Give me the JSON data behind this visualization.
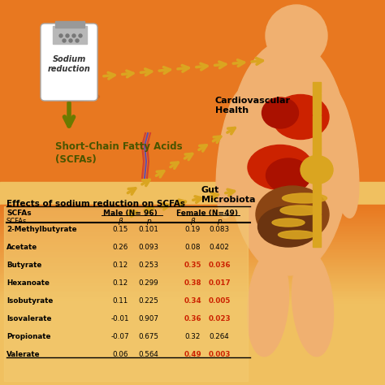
{
  "bg_orange": "#E87820",
  "bg_yellow": "#F5D070",
  "table_title": "Effects of sodium reduction on SCFAs",
  "label_scfa": "Short-Chain Fatty Acids\n(SCFAs)",
  "label_cardio": "Cardiovascular\nHealth",
  "label_gut": "Gut\nMicrobiota",
  "label_sodium": "Sodium\nreduction",
  "arrow_color": "#DAA520",
  "down_arrow_color": "#6B7A00",
  "body_color": "#F0B070",
  "body_shadow": "#D0906A",
  "organ_red": "#CC2200",
  "organ_yellow": "#DAA520",
  "intestine_brown": "#8B4513",
  "sig_color": "#CC2200",
  "normal_color": "#000000",
  "header_color": "#000000",
  "scfas": [
    "2-Methylbutyrate",
    "Acetate",
    "Butyrate",
    "Hexanoate",
    "Isobutyrate",
    "Isovalerate",
    "Propionate",
    "Valerate"
  ],
  "male_beta": [
    0.15,
    0.26,
    0.12,
    0.12,
    0.11,
    -0.01,
    -0.07,
    0.06
  ],
  "male_p": [
    0.101,
    0.093,
    0.253,
    0.299,
    0.225,
    0.907,
    0.675,
    0.564
  ],
  "female_beta": [
    0.19,
    0.08,
    0.35,
    0.38,
    0.34,
    0.36,
    0.32,
    0.49
  ],
  "female_p": [
    0.083,
    0.402,
    0.036,
    0.017,
    0.005,
    0.023,
    0.264,
    0.003
  ],
  "sig_threshold": 0.05
}
